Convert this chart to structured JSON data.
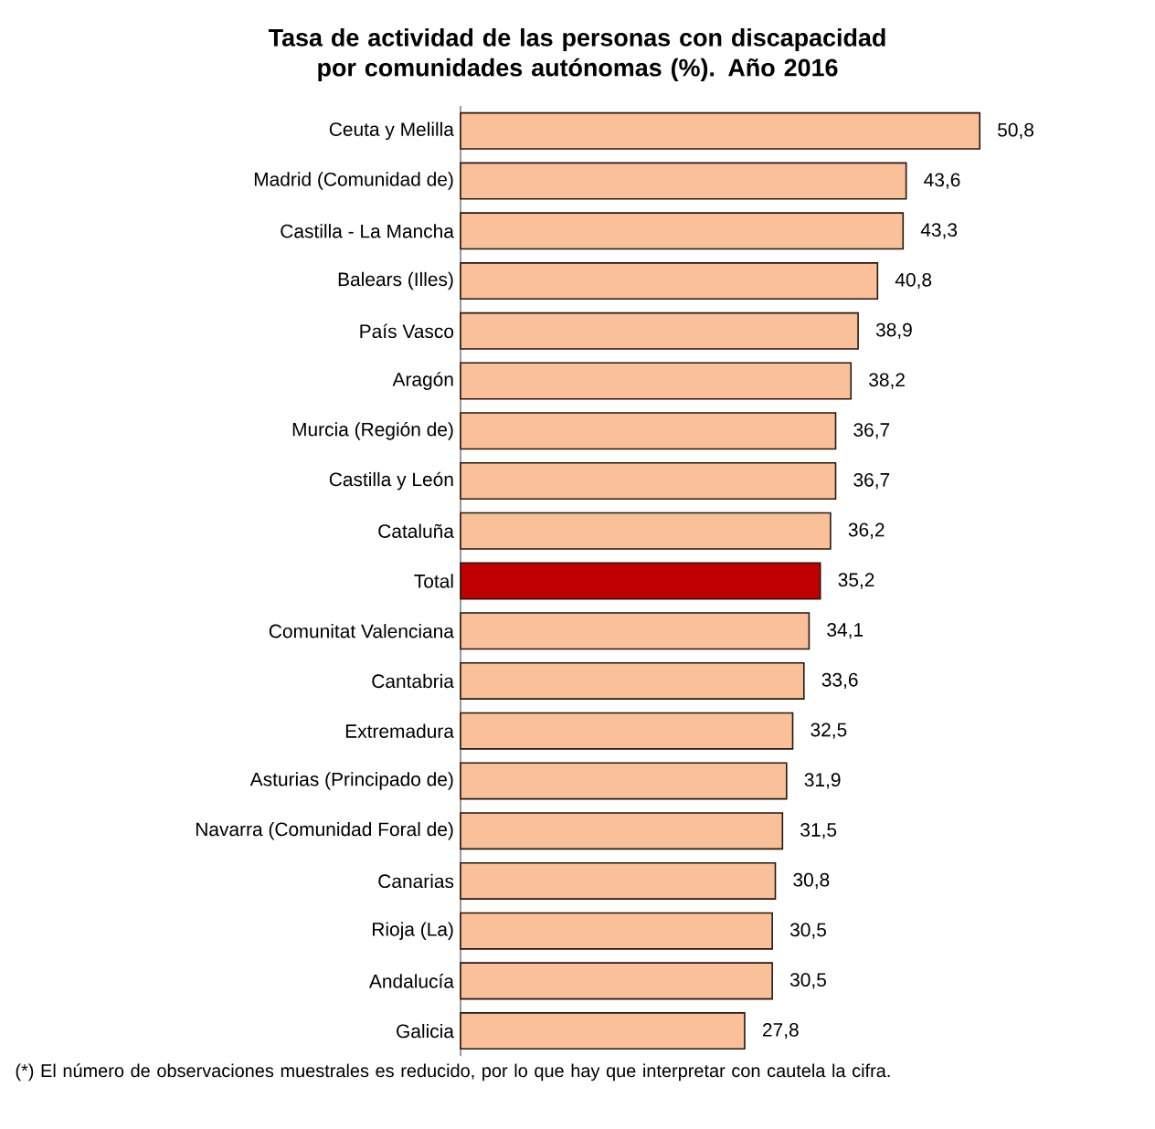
{
  "chart_data": {
    "type": "bar",
    "orientation": "horizontal",
    "title": "Tasa de actividad de las personas con discapacidad por comunidades autónomas (%). Año 2016",
    "categories": [
      "Ceuta y Melilla",
      "Madrid (Comunidad de)",
      "Castilla - La Mancha",
      "Balears (Illes)",
      "País Vasco",
      "Aragón",
      "Murcia (Región de)",
      "Castilla y León",
      "Cataluña",
      "Total",
      "Comunitat Valenciana",
      "Cantabria",
      "Extremadura",
      "Asturias (Principado de)",
      "Navarra (Comunidad Foral de)",
      "Canarias",
      "Rioja (La)",
      "Andalucía",
      "Galicia"
    ],
    "values": [
      50.8,
      43.6,
      43.3,
      40.8,
      38.9,
      38.2,
      36.7,
      36.7,
      36.2,
      35.2,
      34.1,
      33.6,
      32.5,
      31.9,
      31.5,
      30.8,
      30.5,
      30.5,
      27.8
    ],
    "colors": [
      "#f9c09a",
      "#f9c09a",
      "#f9c09a",
      "#f9c09a",
      "#f9c09a",
      "#f9c09a",
      "#f9c09a",
      "#f9c09a",
      "#f9c09a",
      "#c00000",
      "#f9c09a",
      "#f9c09a",
      "#f9c09a",
      "#f9c09a",
      "#f9c09a",
      "#f9c09a",
      "#f9c09a",
      "#f9c09a",
      "#f9c09a"
    ],
    "value_labels": [
      "50,8",
      "43,6",
      "43,3",
      "40,8",
      "38,9",
      "38,2",
      "36,7",
      "36,7",
      "36,2",
      "35,2",
      "34,1",
      "33,6",
      "32,5",
      "31,9",
      "31,5",
      "30,8",
      "30,5",
      "30,5",
      "27,8"
    ],
    "annotations": [
      "(*) El número de observaciones muestrales es reducido, por lo que hay que interpretar con cautela la cifra."
    ]
  }
}
